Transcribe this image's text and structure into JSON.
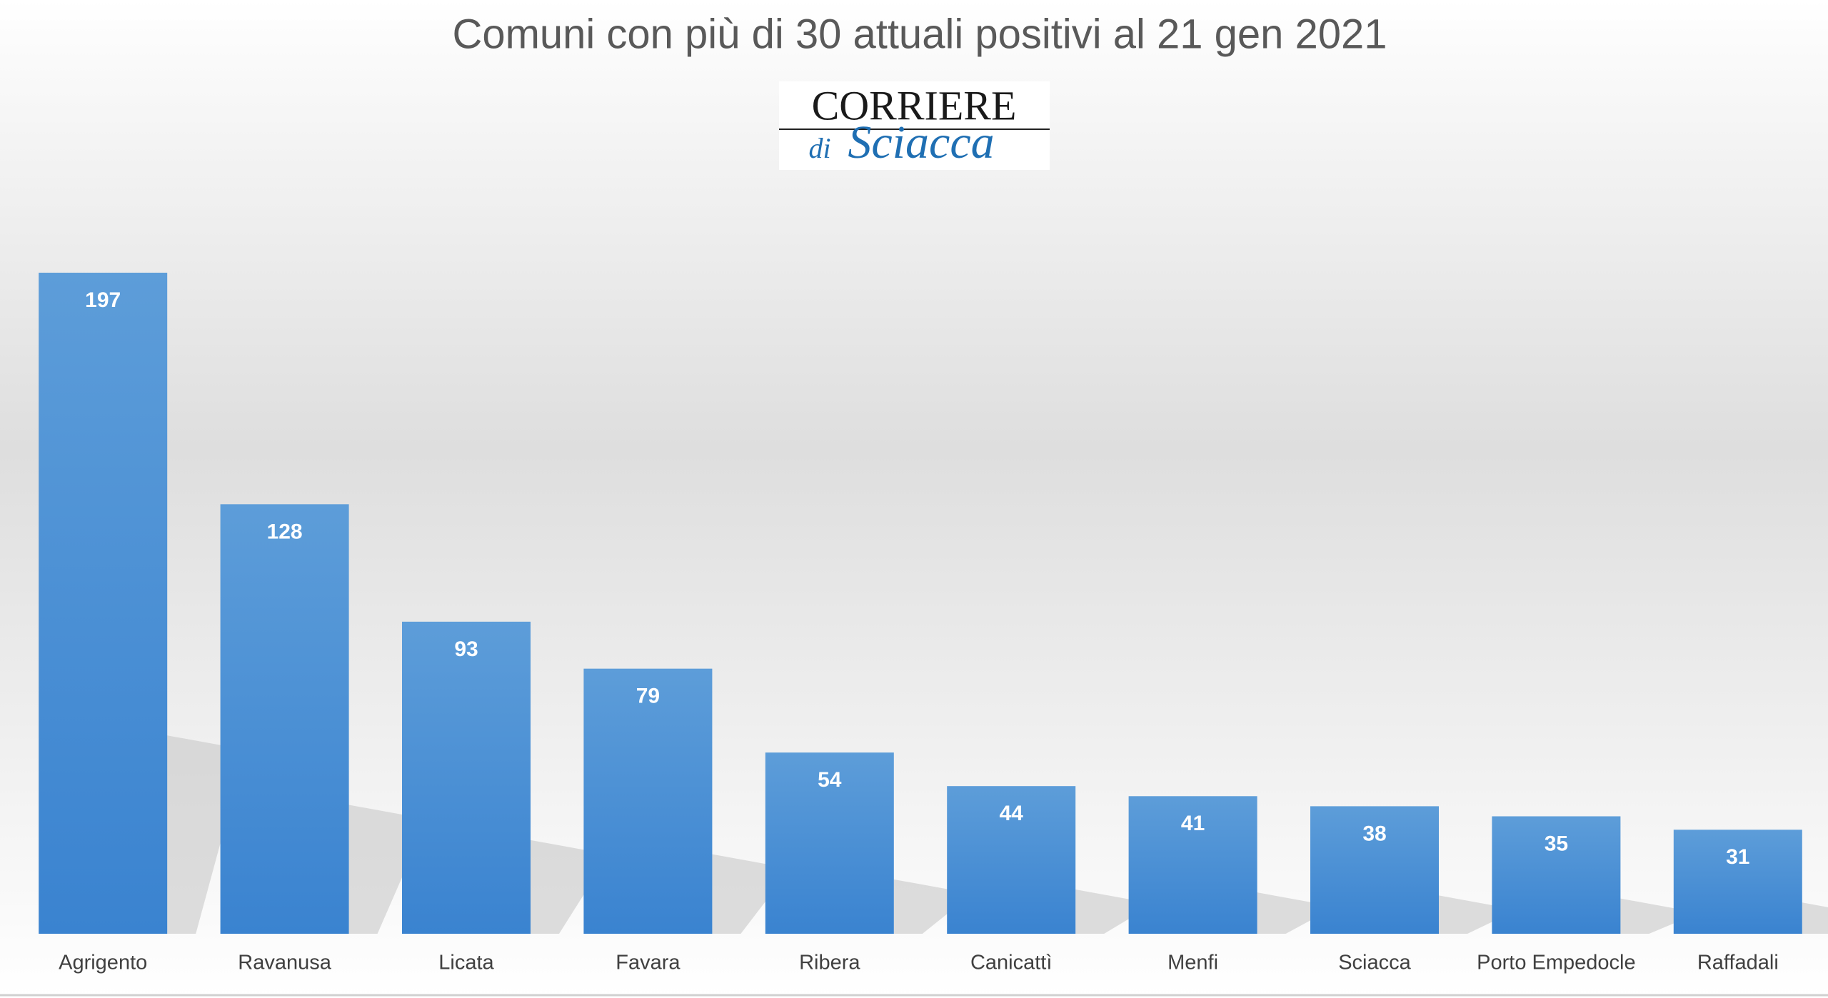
{
  "chart_data": {
    "type": "bar",
    "title": "Comuni con più di 30 attuali positivi al 21 gen 2021",
    "annotations": [
      "CORRIERE",
      "di",
      "Sciacca"
    ],
    "categories": [
      "Agrigento",
      "Ravanusa",
      "Licata",
      "Favara",
      "Ribera",
      "Canicattì",
      "Menfi",
      "Sciacca",
      "Porto Empedocle",
      "Raffadali"
    ],
    "values": [
      197,
      128,
      93,
      79,
      54,
      44,
      41,
      38,
      35,
      31
    ],
    "color": "#4a8fd6",
    "data_labels": true
  }
}
